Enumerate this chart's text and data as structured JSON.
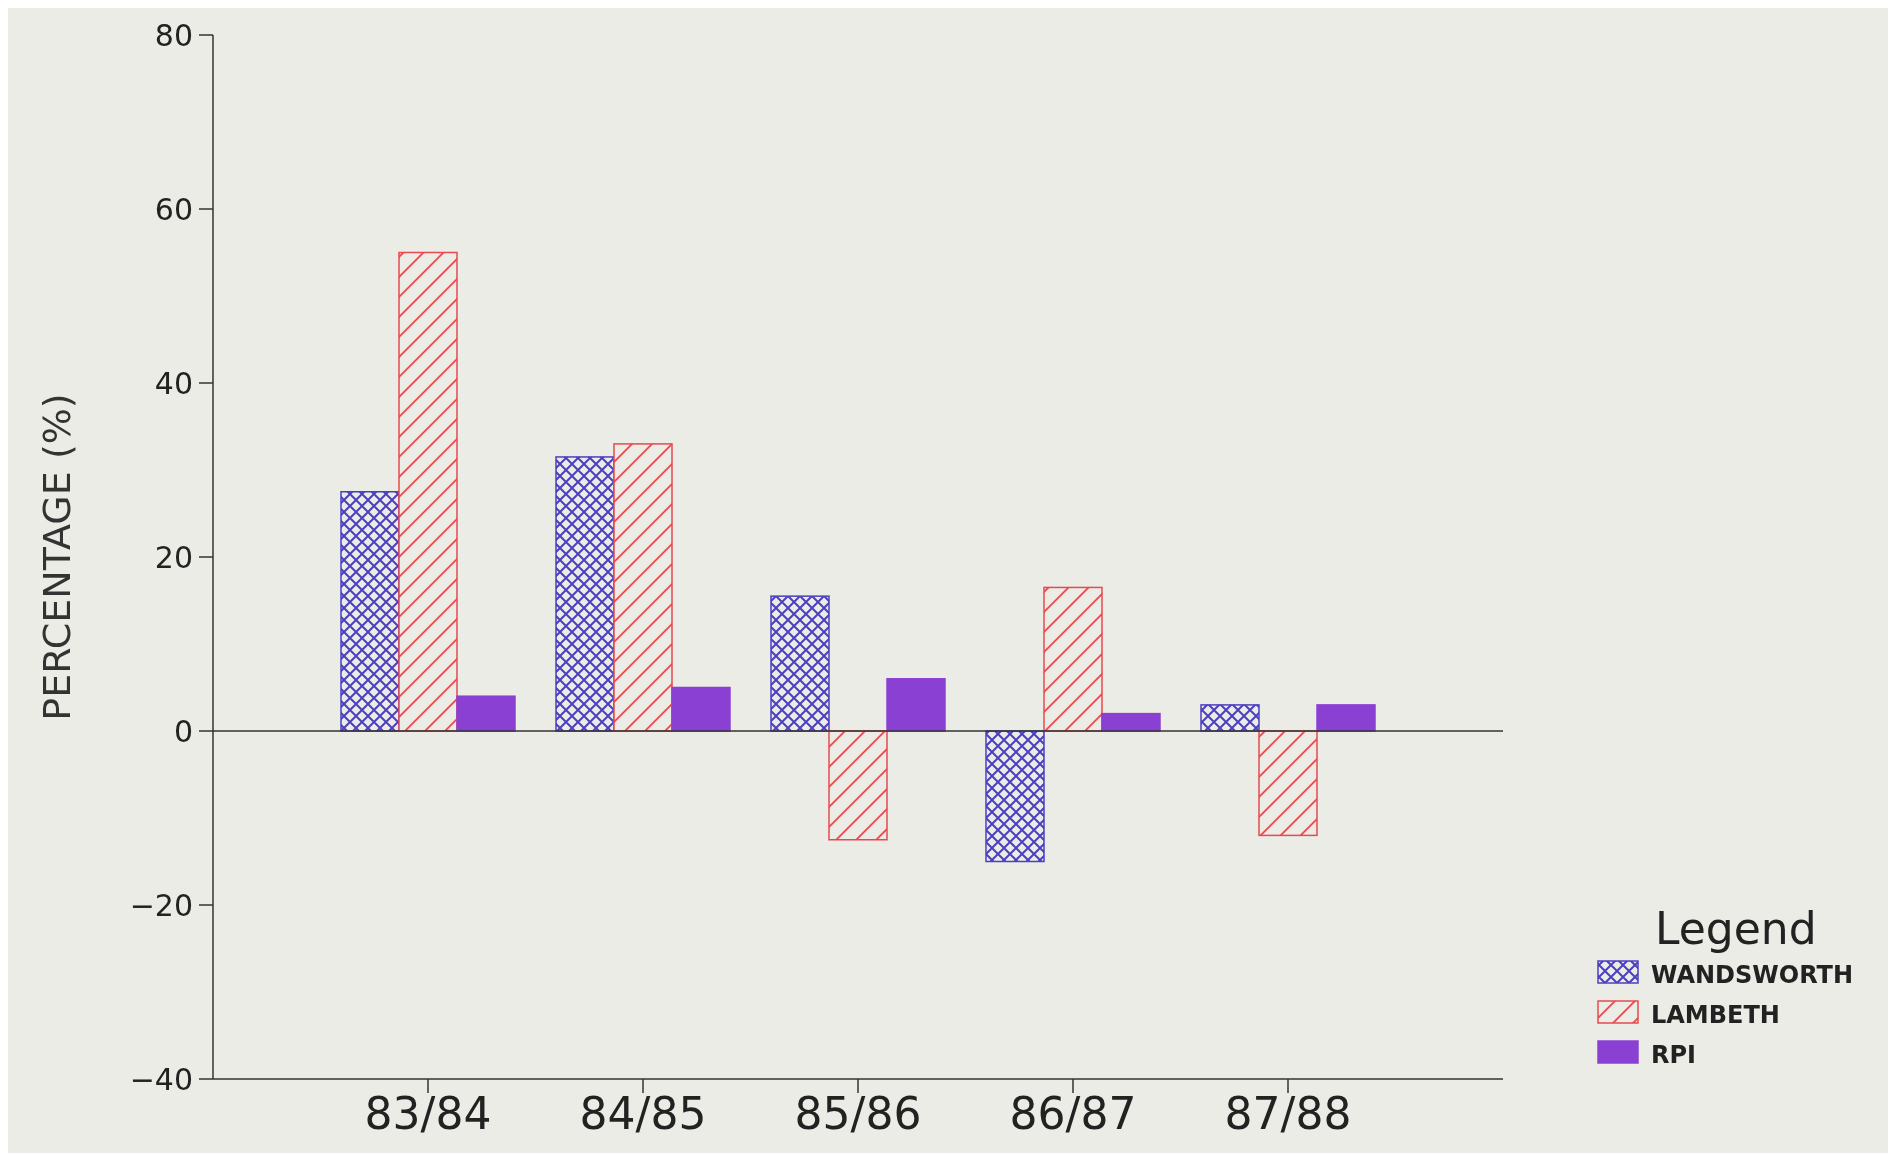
{
  "chart_data": {
    "type": "bar",
    "ylabel": "PERCENTAGE (%)",
    "legend_title": "Legend",
    "categories": [
      "83/84",
      "84/85",
      "85/86",
      "86/87",
      "87/88"
    ],
    "series": [
      {
        "name": "WANDSWORTH",
        "color": "#4b3fc2",
        "values": [
          27.5,
          31.5,
          15.5,
          -15,
          3
        ]
      },
      {
        "name": "LAMBETH",
        "color": "#e8494f",
        "values": [
          55,
          33,
          -12.5,
          16.5,
          -12
        ]
      },
      {
        "name": "RPI",
        "color": "#8a40d2",
        "values": [
          4,
          5,
          6,
          2,
          3
        ]
      }
    ],
    "ylim": [
      -40,
      80
    ],
    "yticks": [
      {
        "value": -40,
        "label": "−40"
      },
      {
        "value": -20,
        "label": "−20"
      },
      0,
      20,
      40,
      60,
      80
    ],
    "legend": "bottom right"
  }
}
